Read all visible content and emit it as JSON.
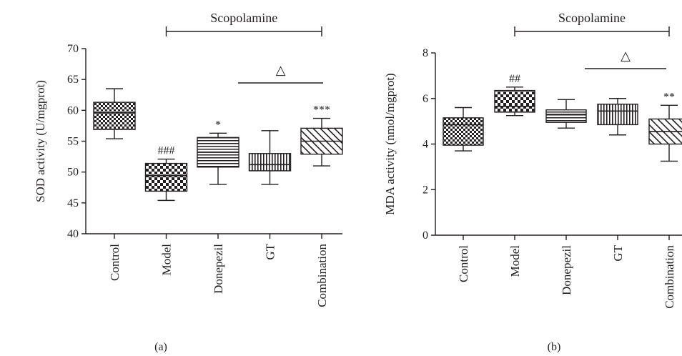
{
  "chart_data": [
    {
      "type": "box",
      "panel_label": "(a)",
      "ylabel": "SOD activity (U/mgprot)",
      "ylim": [
        40,
        70
      ],
      "yticks": [
        40,
        45,
        50,
        55,
        60,
        65,
        70
      ],
      "categories": [
        "Control",
        "Model",
        "Donepezil",
        "GT",
        "Combination"
      ],
      "group_label": "Scopolamine",
      "group_span": [
        "Model",
        "Combination"
      ],
      "comparison_marker": "△",
      "comparison_span": [
        "GT",
        "Combination"
      ],
      "boxes": [
        {
          "category": "Control",
          "min": 55.4,
          "q1": 56.9,
          "median": 59.6,
          "q3": 61.3,
          "max": 63.5,
          "pattern": "checker-fine",
          "annotation": ""
        },
        {
          "category": "Model",
          "min": 45.4,
          "q1": 46.9,
          "median": 49.4,
          "q3": 51.4,
          "max": 52.1,
          "pattern": "checker-bold",
          "annotation": "###"
        },
        {
          "category": "Donepezil",
          "min": 48.0,
          "q1": 50.8,
          "median": 53.2,
          "q3": 55.6,
          "max": 56.3,
          "pattern": "horizontal-lines",
          "annotation": "*"
        },
        {
          "category": "GT",
          "min": 48.0,
          "q1": 50.2,
          "median": 51.2,
          "q3": 53.0,
          "max": 56.7,
          "pattern": "vertical-lines",
          "annotation": ""
        },
        {
          "category": "Combination",
          "min": 51.0,
          "q1": 52.9,
          "median": 55.0,
          "q3": 57.1,
          "max": 58.7,
          "pattern": "diagonal-lines",
          "annotation": "***"
        }
      ]
    },
    {
      "type": "box",
      "panel_label": "(b)",
      "ylabel": "MDA activity (nmol/mgprot)",
      "ylim": [
        0,
        8
      ],
      "yticks": [
        0,
        2,
        4,
        6,
        8
      ],
      "categories": [
        "Control",
        "Model",
        "Donepezil",
        "GT",
        "Combination"
      ],
      "group_label": "Scopolamine",
      "group_span": [
        "Model",
        "Combination"
      ],
      "comparison_marker": "△",
      "comparison_span": [
        "GT",
        "Combination"
      ],
      "boxes": [
        {
          "category": "Control",
          "min": 3.7,
          "q1": 3.95,
          "median": 4.85,
          "q3": 5.15,
          "max": 5.6,
          "pattern": "checker-fine",
          "annotation": ""
        },
        {
          "category": "Model",
          "min": 5.25,
          "q1": 5.4,
          "median": 5.65,
          "q3": 6.35,
          "max": 6.5,
          "pattern": "checker-bold",
          "annotation": "##"
        },
        {
          "category": "Donepezil",
          "min": 4.7,
          "q1": 4.95,
          "median": 5.3,
          "q3": 5.5,
          "max": 5.95,
          "pattern": "horizontal-lines",
          "annotation": ""
        },
        {
          "category": "GT",
          "min": 4.4,
          "q1": 4.85,
          "median": 5.45,
          "q3": 5.75,
          "max": 6.0,
          "pattern": "vertical-lines",
          "annotation": ""
        },
        {
          "category": "Combination",
          "min": 3.25,
          "q1": 4.0,
          "median": 4.55,
          "q3": 5.1,
          "max": 5.7,
          "pattern": "diagonal-lines",
          "annotation": "**"
        }
      ]
    }
  ]
}
